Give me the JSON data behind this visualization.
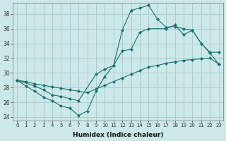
{
  "xlabel": "Humidex (Indice chaleur)",
  "bg_color": "#cce8e8",
  "grid_color": "#aacfcf",
  "line_color": "#1a7070",
  "xlim": [
    -0.5,
    23.5
  ],
  "ylim": [
    23.5,
    39.5
  ],
  "yticks": [
    24,
    26,
    28,
    30,
    32,
    34,
    36,
    38
  ],
  "xticks": [
    0,
    1,
    2,
    3,
    4,
    5,
    6,
    7,
    8,
    9,
    10,
    11,
    12,
    13,
    14,
    15,
    16,
    17,
    18,
    19,
    20,
    21,
    22,
    23
  ],
  "series1_x": [
    0,
    1,
    2,
    3,
    4,
    5,
    6,
    7,
    8,
    9,
    10,
    11,
    12,
    13,
    14,
    15,
    16,
    17,
    18,
    19,
    20,
    21,
    22,
    23
  ],
  "series1_y": [
    29,
    28.2,
    27.5,
    26.7,
    26.2,
    25.5,
    25.2,
    24.2,
    24.8,
    27.5,
    29.5,
    31.0,
    35.8,
    38.5,
    38.8,
    39.2,
    37.3,
    36.2,
    36.3,
    36.0,
    35.8,
    34.0,
    32.7,
    31.2
  ],
  "series2_x": [
    0,
    1,
    2,
    3,
    4,
    5,
    6,
    7,
    8,
    9,
    10,
    11,
    12,
    13,
    14,
    15,
    16,
    17,
    18,
    19,
    20,
    21,
    22,
    23
  ],
  "series2_y": [
    29.0,
    28.8,
    28.5,
    28.3,
    28.1,
    27.9,
    27.7,
    27.5,
    27.3,
    27.8,
    28.3,
    28.8,
    29.3,
    29.8,
    30.3,
    30.8,
    31.0,
    31.3,
    31.5,
    31.7,
    31.8,
    31.9,
    32.0,
    31.2
  ],
  "series3_x": [
    0,
    2,
    3,
    4,
    5,
    6,
    7,
    9,
    10,
    11,
    12,
    13,
    14,
    15,
    17,
    18,
    19,
    20,
    21,
    22,
    23
  ],
  "series3_y": [
    29.0,
    28.2,
    27.7,
    27.0,
    26.8,
    26.5,
    26.2,
    29.8,
    30.5,
    31.0,
    33.0,
    33.2,
    35.5,
    36.0,
    36.0,
    36.5,
    35.2,
    35.8,
    34.0,
    32.8,
    32.8
  ]
}
